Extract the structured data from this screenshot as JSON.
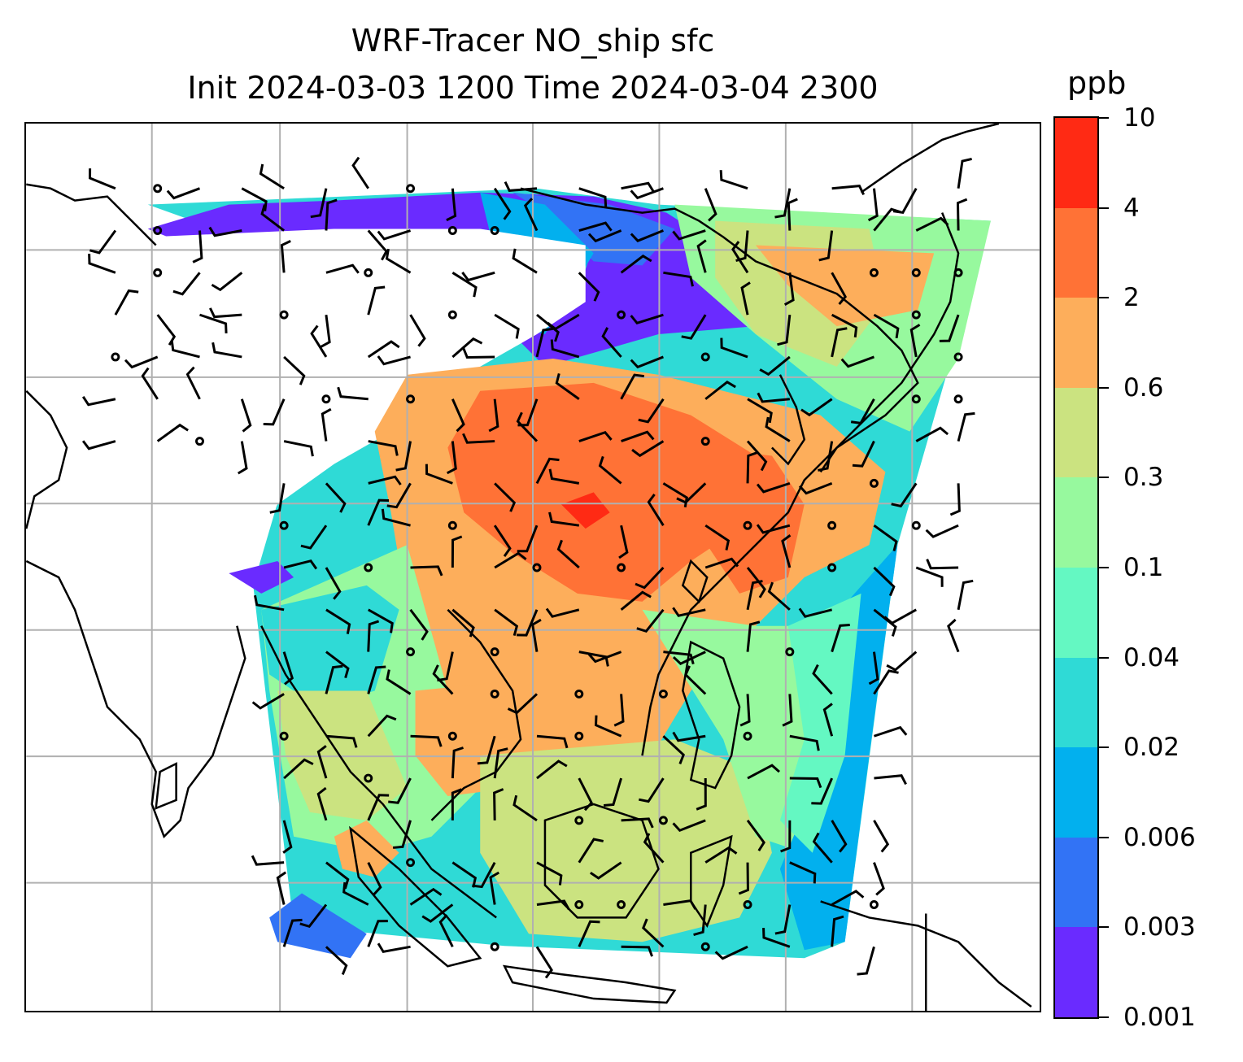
{
  "title": {
    "line1": "WRF-Tracer NO_ship sfc",
    "line2": "Init 2024-03-03 1200 Time 2024-03-04 2300"
  },
  "colorbar": {
    "unit": "ppb",
    "levels": [
      "0.001",
      "0.003",
      "0.006",
      "0.02",
      "0.04",
      "0.1",
      "0.3",
      "0.6",
      "2",
      "4",
      "10"
    ],
    "colors": [
      "#6a2bff",
      "#3273f5",
      "#02b0ee",
      "#2fdad6",
      "#64f8c2",
      "#97f99e",
      "#cbe380",
      "#fdae5b",
      "#ff7236",
      "#ff2a14"
    ]
  },
  "map": {
    "background": "#ffffff",
    "grid_color": "#b0b0b0",
    "coastline_color": "#000000",
    "wind_barb_color": "#000000"
  }
}
